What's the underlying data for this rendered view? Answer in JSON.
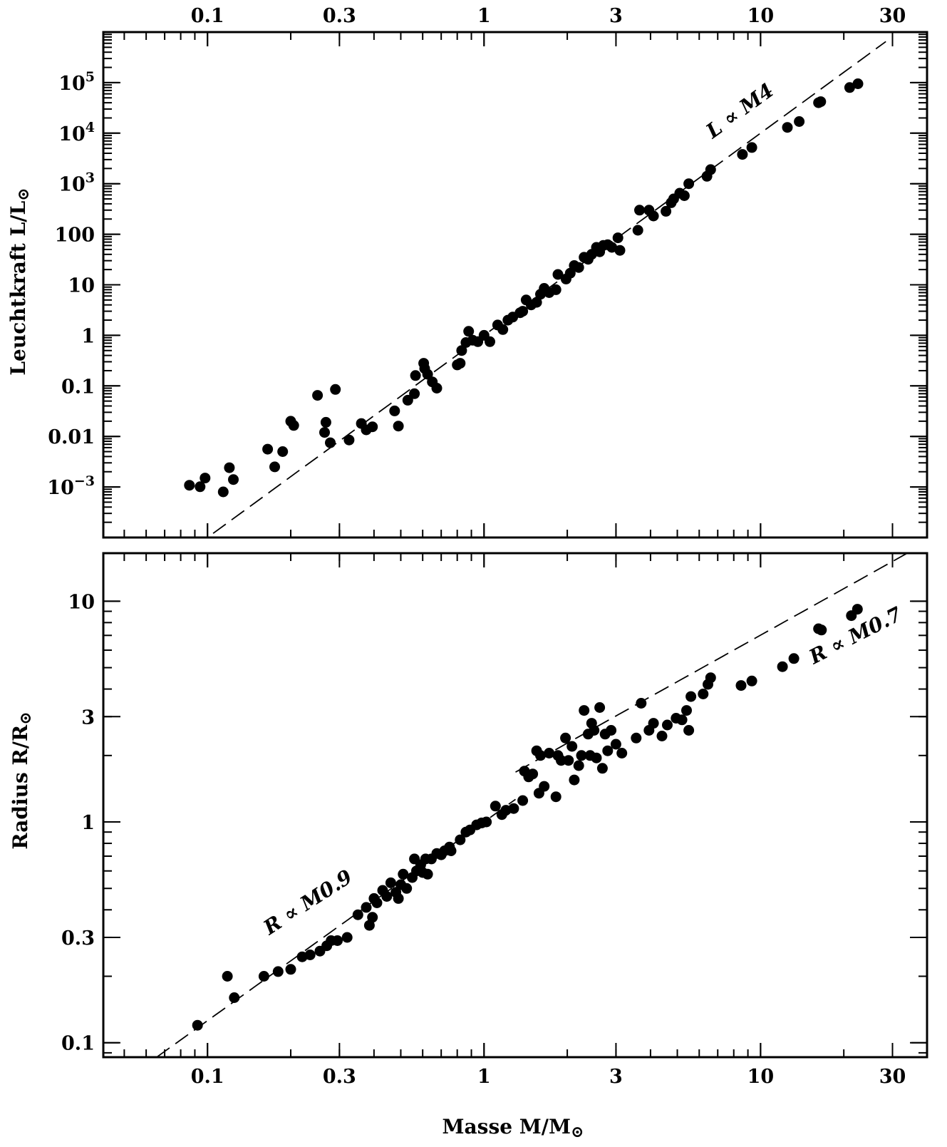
{
  "chart_data": [
    {
      "type": "scatter",
      "x_scale": "log",
      "y_scale": "log",
      "xlim": [
        0.042,
        40
      ],
      "ylim": [
        0.0001,
        1000000
      ],
      "x_ticks": [
        0.1,
        0.3,
        1,
        3,
        10,
        30
      ],
      "x_tick_labels": [
        "0.1",
        "0.3",
        "1",
        "3",
        "10",
        "30"
      ],
      "y_ticks": [
        {
          "value": 100000,
          "base": "10",
          "exp": "5"
        },
        {
          "value": 10000,
          "base": "10",
          "exp": "4"
        },
        {
          "value": 1000,
          "base": "10",
          "exp": "3"
        },
        {
          "value": 100,
          "base": "100",
          "exp": ""
        },
        {
          "value": 10,
          "base": "10",
          "exp": ""
        },
        {
          "value": 1,
          "base": "1",
          "exp": ""
        },
        {
          "value": 0.1,
          "base": "0.1",
          "exp": ""
        },
        {
          "value": 0.01,
          "base": "0.01",
          "exp": ""
        },
        {
          "value": 0.001,
          "base": "10",
          "exp": "−3"
        }
      ],
      "ylabel": "Leuchtkraft L/L",
      "ylabel_sun": "⊙",
      "fit": {
        "label": "L ∝ M",
        "exp": "4",
        "coef": 1,
        "power": 4
      },
      "points": [
        [
          0.086,
          0.00108
        ],
        [
          0.094,
          0.00101
        ],
        [
          0.098,
          0.0015
        ],
        [
          0.114,
          0.0008
        ],
        [
          0.12,
          0.0024
        ],
        [
          0.124,
          0.0014
        ],
        [
          0.165,
          0.0056
        ],
        [
          0.175,
          0.0025
        ],
        [
          0.187,
          0.005
        ],
        [
          0.2,
          0.02
        ],
        [
          0.205,
          0.0165
        ],
        [
          0.25,
          0.065
        ],
        [
          0.265,
          0.012
        ],
        [
          0.268,
          0.019
        ],
        [
          0.278,
          0.0075
        ],
        [
          0.29,
          0.085
        ],
        [
          0.325,
          0.0085
        ],
        [
          0.36,
          0.018
        ],
        [
          0.375,
          0.0135
        ],
        [
          0.395,
          0.0155
        ],
        [
          0.475,
          0.032
        ],
        [
          0.49,
          0.016
        ],
        [
          0.53,
          0.052
        ],
        [
          0.56,
          0.07
        ],
        [
          0.565,
          0.16
        ],
        [
          0.605,
          0.28
        ],
        [
          0.61,
          0.22
        ],
        [
          0.625,
          0.17
        ],
        [
          0.65,
          0.12
        ],
        [
          0.675,
          0.09
        ],
        [
          0.8,
          0.26
        ],
        [
          0.82,
          0.28
        ],
        [
          0.83,
          0.5
        ],
        [
          0.86,
          0.72
        ],
        [
          0.88,
          1.2
        ],
        [
          0.91,
          0.8
        ],
        [
          0.95,
          0.75
        ],
        [
          1.0,
          1.0
        ],
        [
          1.05,
          0.75
        ],
        [
          1.12,
          1.6
        ],
        [
          1.17,
          1.3
        ],
        [
          1.22,
          2.0
        ],
        [
          1.27,
          2.3
        ],
        [
          1.35,
          2.8
        ],
        [
          1.38,
          3.0
        ],
        [
          1.42,
          5.0
        ],
        [
          1.48,
          4.0
        ],
        [
          1.55,
          4.5
        ],
        [
          1.6,
          6.5
        ],
        [
          1.65,
          8.5
        ],
        [
          1.72,
          7.0
        ],
        [
          1.82,
          8.0
        ],
        [
          1.85,
          16
        ],
        [
          1.98,
          13
        ],
        [
          2.05,
          17
        ],
        [
          2.12,
          24
        ],
        [
          2.2,
          22
        ],
        [
          2.3,
          35
        ],
        [
          2.38,
          32
        ],
        [
          2.45,
          40
        ],
        [
          2.55,
          55
        ],
        [
          2.62,
          45
        ],
        [
          2.7,
          60
        ],
        [
          2.8,
          62
        ],
        [
          2.9,
          55
        ],
        [
          3.05,
          85
        ],
        [
          3.1,
          48
        ],
        [
          3.6,
          120
        ],
        [
          3.65,
          300
        ],
        [
          3.95,
          300
        ],
        [
          4.1,
          230
        ],
        [
          4.55,
          285
        ],
        [
          4.75,
          420
        ],
        [
          4.85,
          500
        ],
        [
          5.1,
          650
        ],
        [
          5.3,
          580
        ],
        [
          5.5,
          1000
        ],
        [
          6.4,
          1400
        ],
        [
          6.6,
          1900
        ],
        [
          8.6,
          3800
        ],
        [
          9.3,
          5200
        ],
        [
          12.5,
          13000
        ],
        [
          13.8,
          17000
        ],
        [
          16.2,
          40000
        ],
        [
          16.5,
          42000
        ],
        [
          21.0,
          80000
        ],
        [
          22.5,
          95000
        ]
      ]
    },
    {
      "type": "scatter",
      "x_scale": "log",
      "y_scale": "log",
      "xlim": [
        0.042,
        40
      ],
      "ylim": [
        0.086,
        16.5
      ],
      "x_ticks": [
        0.1,
        0.3,
        1,
        3,
        10,
        30
      ],
      "x_tick_labels": [
        "0.1",
        "0.3",
        "1",
        "3",
        "10",
        "30"
      ],
      "y_ticks": [
        {
          "value": 10,
          "base": "10",
          "exp": ""
        },
        {
          "value": 3,
          "base": "3",
          "exp": ""
        },
        {
          "value": 1,
          "base": "1",
          "exp": ""
        },
        {
          "value": 0.3,
          "base": "0.3",
          "exp": ""
        },
        {
          "value": 0.1,
          "base": "0.1",
          "exp": ""
        }
      ],
      "xlabel": "Masse M/M",
      "xlabel_sun": "⊙",
      "ylabel": "Radius R/R",
      "ylabel_sun": "⊙",
      "fits": [
        {
          "label": "R ∝ M",
          "exp": "0.9",
          "coef": 1,
          "power": 0.9,
          "xrange": [
            0.05,
            1.3
          ]
        },
        {
          "label": "R ∝ M",
          "exp": "0.7",
          "coef": 1.4,
          "power": 0.7,
          "xrange": [
            1.3,
            40
          ]
        }
      ],
      "points": [
        [
          0.092,
          0.12
        ],
        [
          0.118,
          0.2
        ],
        [
          0.125,
          0.16
        ],
        [
          0.16,
          0.2
        ],
        [
          0.18,
          0.21
        ],
        [
          0.2,
          0.215
        ],
        [
          0.22,
          0.245
        ],
        [
          0.235,
          0.25
        ],
        [
          0.255,
          0.26
        ],
        [
          0.27,
          0.275
        ],
        [
          0.28,
          0.29
        ],
        [
          0.295,
          0.29
        ],
        [
          0.32,
          0.3
        ],
        [
          0.35,
          0.38
        ],
        [
          0.375,
          0.41
        ],
        [
          0.385,
          0.34
        ],
        [
          0.395,
          0.37
        ],
        [
          0.4,
          0.45
        ],
        [
          0.41,
          0.43
        ],
        [
          0.43,
          0.49
        ],
        [
          0.445,
          0.46
        ],
        [
          0.46,
          0.53
        ],
        [
          0.48,
          0.48
        ],
        [
          0.49,
          0.45
        ],
        [
          0.5,
          0.52
        ],
        [
          0.51,
          0.58
        ],
        [
          0.525,
          0.5
        ],
        [
          0.55,
          0.56
        ],
        [
          0.56,
          0.68
        ],
        [
          0.57,
          0.6
        ],
        [
          0.59,
          0.64
        ],
        [
          0.6,
          0.59
        ],
        [
          0.615,
          0.68
        ],
        [
          0.625,
          0.58
        ],
        [
          0.645,
          0.68
        ],
        [
          0.675,
          0.72
        ],
        [
          0.7,
          0.71
        ],
        [
          0.72,
          0.74
        ],
        [
          0.75,
          0.77
        ],
        [
          0.76,
          0.74
        ],
        [
          0.82,
          0.83
        ],
        [
          0.86,
          0.9
        ],
        [
          0.89,
          0.92
        ],
        [
          0.94,
          0.97
        ],
        [
          0.98,
          0.99
        ],
        [
          1.02,
          1.0
        ],
        [
          1.1,
          1.18
        ],
        [
          1.16,
          1.08
        ],
        [
          1.2,
          1.13
        ],
        [
          1.28,
          1.15
        ],
        [
          1.38,
          1.25
        ],
        [
          1.4,
          1.7
        ],
        [
          1.45,
          1.6
        ],
        [
          1.5,
          1.65
        ],
        [
          1.55,
          2.1
        ],
        [
          1.58,
          1.35
        ],
        [
          1.6,
          2.0
        ],
        [
          1.65,
          1.45
        ],
        [
          1.72,
          2.05
        ],
        [
          1.82,
          1.3
        ],
        [
          1.85,
          2.0
        ],
        [
          1.9,
          1.9
        ],
        [
          1.97,
          2.4
        ],
        [
          2.02,
          1.9
        ],
        [
          2.08,
          2.2
        ],
        [
          2.12,
          1.55
        ],
        [
          2.2,
          1.8
        ],
        [
          2.25,
          2.0
        ],
        [
          2.3,
          3.2
        ],
        [
          2.38,
          2.5
        ],
        [
          2.42,
          2.0
        ],
        [
          2.45,
          2.8
        ],
        [
          2.5,
          2.6
        ],
        [
          2.55,
          1.95
        ],
        [
          2.62,
          3.3
        ],
        [
          2.68,
          1.75
        ],
        [
          2.74,
          2.5
        ],
        [
          2.8,
          2.1
        ],
        [
          2.88,
          2.6
        ],
        [
          3.0,
          2.25
        ],
        [
          3.15,
          2.05
        ],
        [
          3.55,
          2.4
        ],
        [
          3.7,
          3.45
        ],
        [
          3.95,
          2.6
        ],
        [
          4.1,
          2.8
        ],
        [
          4.4,
          2.45
        ],
        [
          4.6,
          2.75
        ],
        [
          4.95,
          2.95
        ],
        [
          5.2,
          2.9
        ],
        [
          5.4,
          3.2
        ],
        [
          5.5,
          2.6
        ],
        [
          5.6,
          3.7
        ],
        [
          6.2,
          3.8
        ],
        [
          6.45,
          4.2
        ],
        [
          6.6,
          4.5
        ],
        [
          8.5,
          4.15
        ],
        [
          9.3,
          4.35
        ],
        [
          12.0,
          5.05
        ],
        [
          13.2,
          5.5
        ],
        [
          16.2,
          7.5
        ],
        [
          16.6,
          7.4
        ],
        [
          21.3,
          8.6
        ],
        [
          22.4,
          9.2
        ]
      ]
    }
  ]
}
